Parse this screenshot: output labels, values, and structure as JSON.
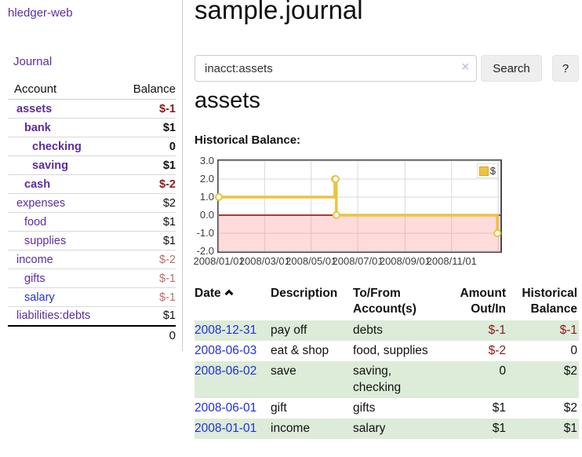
{
  "app": {
    "brand": "hledger-web"
  },
  "colors": {
    "link_purple": "#5b2d9e",
    "link_blue": "#2230d6",
    "negative_strong": "#8b1a1a",
    "negative_dim": "#c26b6b",
    "row_stripe_green": "#dcecd8",
    "series_gold": "#edc240"
  },
  "sidebar": {
    "journal_link": "Journal",
    "accounts": {
      "col_account": "Account",
      "col_balance": "Balance",
      "rows": [
        {
          "name": "assets",
          "balance": "$-1"
        },
        {
          "name": "bank",
          "balance": "$1"
        },
        {
          "name": "checking",
          "balance": "0"
        },
        {
          "name": "saving",
          "balance": "$1"
        },
        {
          "name": "cash",
          "balance": "$-2"
        },
        {
          "name": "expenses",
          "balance": "$2"
        },
        {
          "name": "food",
          "balance": "$1"
        },
        {
          "name": "supplies",
          "balance": "$1"
        },
        {
          "name": "income",
          "balance": "$-2"
        },
        {
          "name": "gifts",
          "balance": "$-1"
        },
        {
          "name": "salary",
          "balance": "$-1"
        },
        {
          "name": "liabilities:debts",
          "balance": "$1"
        }
      ],
      "total": "0"
    }
  },
  "main": {
    "title": "sample.journal",
    "search": {
      "value": "inacct:assets",
      "clear_icon": "×",
      "search_button": "Search",
      "help_button": "?"
    },
    "account_heading": "assets",
    "section_heading": "Historical Balance:"
  },
  "register": {
    "headers": {
      "date": "Date",
      "sort_icon": "chevron-up",
      "description": "Description",
      "accounts": "To/From Account(s)",
      "amount": "Amount Out/In",
      "balance": "Historical Balance"
    },
    "rows": [
      {
        "date": "2008-12-31",
        "description": "pay off",
        "accounts": "debts",
        "amount": "$-1",
        "balance": "$-1"
      },
      {
        "date": "2008-06-03",
        "description": "eat & shop",
        "accounts": "food, supplies",
        "amount": "$-2",
        "balance": "0"
      },
      {
        "date": "2008-06-02",
        "description": "save",
        "accounts": "saving, checking",
        "amount": "0",
        "balance": "$2"
      },
      {
        "date": "2008-06-01",
        "description": "gift",
        "accounts": "gifts",
        "amount": "$1",
        "balance": "$2"
      },
      {
        "date": "2008-01-01",
        "description": "income",
        "accounts": "salary",
        "amount": "$1",
        "balance": "$1"
      }
    ]
  },
  "chart_data": {
    "type": "line",
    "step": true,
    "title": "Historical Balance",
    "series": [
      {
        "name": "$",
        "x": [
          "2008-01-01",
          "2008-06-01",
          "2008-06-02",
          "2008-06-03",
          "2008-12-31"
        ],
        "values": [
          1.0,
          2.0,
          2.0,
          0.0,
          -1.0
        ]
      }
    ],
    "xlim": [
      "2008-01-01",
      "2009-01-04"
    ],
    "ylim": [
      -2.0,
      3.0
    ],
    "y_ticks": [
      {
        "value": 3,
        "label": "3.0"
      },
      {
        "value": 2,
        "label": "2.0"
      },
      {
        "value": 1,
        "label": "1.0"
      },
      {
        "value": 0,
        "label": "0.0"
      },
      {
        "value": -1,
        "label": "-1.0"
      },
      {
        "value": -2,
        "label": "-2.0"
      }
    ],
    "x_ticks": [
      {
        "date": "2008-01-01",
        "label": "2008/01/01"
      },
      {
        "date": "2008-03-01",
        "label": "2008/03/01"
      },
      {
        "date": "2008-05-01",
        "label": "2008/05/01"
      },
      {
        "date": "2008-07-01",
        "label": "2008/07/01"
      },
      {
        "date": "2008-09-01",
        "label": "2008/09/01"
      },
      {
        "date": "2008-11-01",
        "label": "2008/11/01"
      },
      {
        "date": "2009-01-01",
        "label": ""
      }
    ],
    "grid": true,
    "legend_position": "top-right",
    "legend": [
      {
        "label": "$",
        "color": "#edc240"
      }
    ],
    "series_color": "#edc240",
    "zero_line_color": "#8b0000",
    "negative_region_fill": "rgba(255,115,115,0.26)",
    "grid_color": "#d9d9d9"
  }
}
